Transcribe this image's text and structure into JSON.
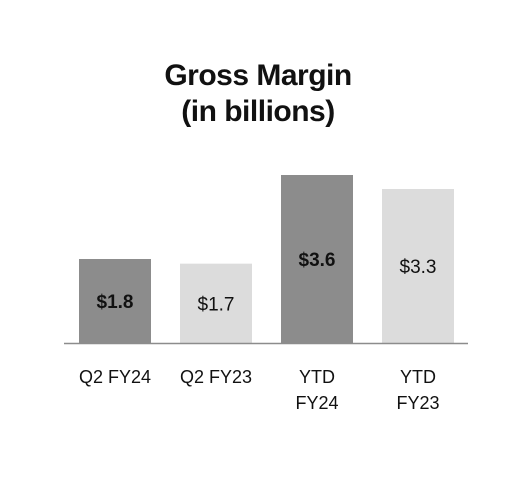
{
  "chart_data": {
    "type": "bar",
    "title": "Gross Margin",
    "subtitle": "(in billions)",
    "categories": [
      [
        "Q2 FY24"
      ],
      [
        "Q2 FY23"
      ],
      [
        "YTD",
        "FY24"
      ],
      [
        "YTD",
        "FY23"
      ]
    ],
    "values": [
      1.8,
      1.7,
      3.6,
      3.3
    ],
    "data_labels": [
      "$1.8",
      "$1.7",
      "$3.6",
      "$3.3"
    ],
    "label_bold": [
      true,
      false,
      true,
      false
    ],
    "colors": [
      "#8c8c8c",
      "#dcdcdc",
      "#8c8c8c",
      "#dcdcdc"
    ],
    "ylim": [
      0,
      3.6
    ],
    "grid": false,
    "legend": "none"
  }
}
